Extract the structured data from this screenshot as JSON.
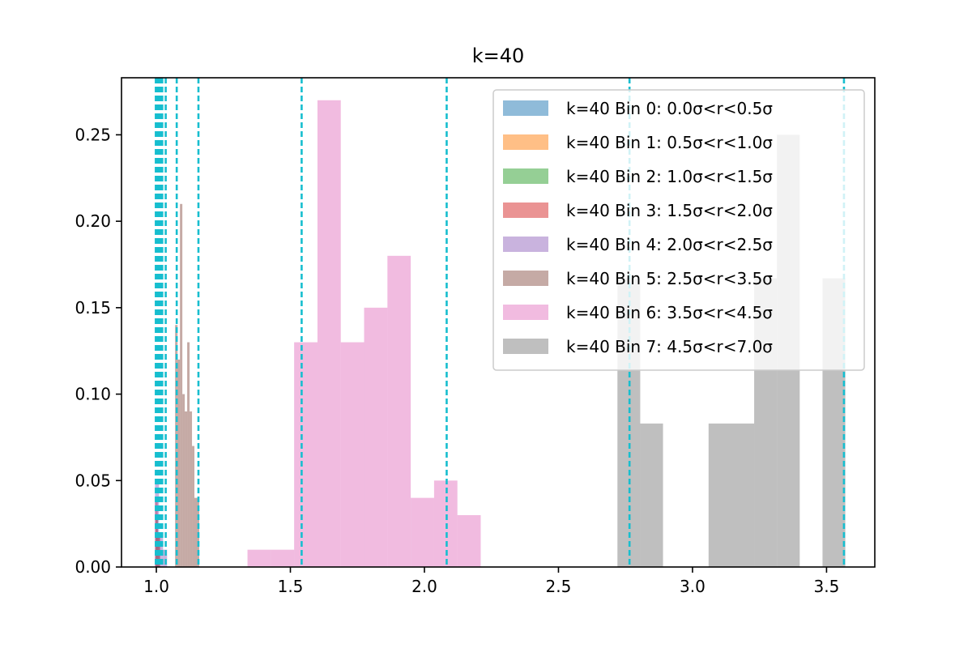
{
  "chart_data": {
    "type": "histogram",
    "title": "k=40",
    "xlabel": "",
    "ylabel": "",
    "xlim": [
      0.87,
      3.68
    ],
    "ylim": [
      0,
      0.283
    ],
    "x_ticks": [
      "1.0",
      "1.5",
      "2.0",
      "2.5",
      "3.0",
      "3.5"
    ],
    "x_tick_values": [
      1.0,
      1.5,
      2.0,
      2.5,
      3.0,
      3.5
    ],
    "y_ticks": [
      "0.00",
      "0.05",
      "0.10",
      "0.15",
      "0.20",
      "0.25"
    ],
    "y_tick_values": [
      0.0,
      0.05,
      0.1,
      0.15,
      0.2,
      0.25
    ],
    "grid": false,
    "legend_position": "upper right",
    "series": [
      {
        "name": "k=40 Bin 0: 0.0σ<r<0.5σ",
        "color": "#1f77b4",
        "bins": [
          [
            0.998,
            1.002,
            0.02
          ]
        ]
      },
      {
        "name": "k=40 Bin 1: 0.5σ<r<1.0σ",
        "color": "#ff7f0e",
        "bins": [
          [
            0.998,
            1.003,
            0.03
          ],
          [
            1.003,
            1.008,
            0.02
          ]
        ]
      },
      {
        "name": "k=40 Bin 2: 1.0σ<r<1.5σ",
        "color": "#2ca02c",
        "bins": [
          [
            1.0,
            1.006,
            0.03
          ],
          [
            1.006,
            1.012,
            0.02
          ]
        ]
      },
      {
        "name": "k=40 Bin 3: 1.5σ<r<2.0σ",
        "color": "#d62728",
        "bins": [
          [
            0.995,
            1.005,
            0.04
          ],
          [
            1.005,
            1.015,
            0.02
          ]
        ]
      },
      {
        "name": "k=40 Bin 4: 2.0σ<r<2.5σ",
        "color": "#9467bd",
        "bins": [
          [
            0.995,
            1.01,
            0.05
          ],
          [
            1.01,
            1.025,
            0.02
          ],
          [
            1.025,
            1.04,
            0.01
          ]
        ]
      },
      {
        "name": "k=40 Bin 5: 2.5σ<r<3.5σ",
        "color": "#8c564b",
        "bins": [
          [
            1.07,
            1.079,
            0.14
          ],
          [
            1.079,
            1.088,
            0.12
          ],
          [
            1.088,
            1.097,
            0.21
          ],
          [
            1.097,
            1.106,
            0.1
          ],
          [
            1.106,
            1.115,
            0.09
          ],
          [
            1.115,
            1.124,
            0.13
          ],
          [
            1.124,
            1.133,
            0.09
          ],
          [
            1.133,
            1.142,
            0.07
          ],
          [
            1.142,
            1.151,
            0.04
          ],
          [
            1.151,
            1.16,
            0.04
          ]
        ]
      },
      {
        "name": "k=40 Bin 6: 3.5σ<r<4.5σ",
        "color": "#e377c2",
        "bins": [
          [
            1.34,
            1.427,
            0.01
          ],
          [
            1.427,
            1.514,
            0.01
          ],
          [
            1.514,
            1.601,
            0.13
          ],
          [
            1.601,
            1.688,
            0.27
          ],
          [
            1.688,
            1.775,
            0.13
          ],
          [
            1.775,
            1.862,
            0.15
          ],
          [
            1.862,
            1.949,
            0.18
          ],
          [
            1.949,
            2.036,
            0.04
          ],
          [
            2.036,
            2.123,
            0.05
          ],
          [
            2.123,
            2.21,
            0.03
          ]
        ]
      },
      {
        "name": "k=40 Bin 7: 4.5σ<r<7.0σ",
        "color": "#7f7f7f",
        "bins": [
          [
            2.72,
            2.805,
            0.167
          ],
          [
            2.805,
            2.89,
            0.083
          ],
          [
            2.89,
            2.975,
            0.0
          ],
          [
            2.975,
            3.06,
            0.0
          ],
          [
            3.06,
            3.145,
            0.083
          ],
          [
            3.145,
            3.23,
            0.083
          ],
          [
            3.23,
            3.315,
            0.167
          ],
          [
            3.315,
            3.4,
            0.25
          ],
          [
            3.4,
            3.485,
            0.0
          ],
          [
            3.485,
            3.57,
            0.167
          ]
        ]
      }
    ],
    "vertical_lines": {
      "color": "#17becf",
      "style": "dashed",
      "x": [
        0.998,
        1.003,
        1.009,
        1.012,
        1.016,
        1.022,
        1.035,
        1.076,
        1.157,
        1.542,
        2.083,
        2.765,
        3.565
      ]
    }
  }
}
